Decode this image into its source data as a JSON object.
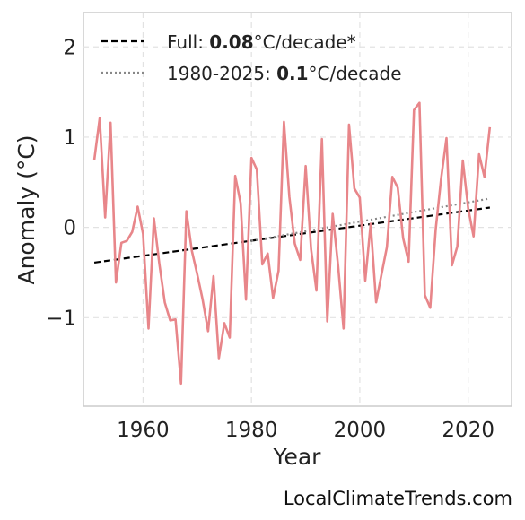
{
  "chart_data": {
    "type": "line",
    "xlabel": "Year",
    "ylabel": "Anomaly (°C)",
    "xlim": [
      1949,
      2028
    ],
    "ylim": [
      -1.98,
      2.38
    ],
    "grid": true,
    "legend_position": "top-left",
    "x_ticks": [
      1960,
      1980,
      2000,
      2020
    ],
    "x_tick_labels": [
      "1960",
      "1980",
      "2000",
      "2020"
    ],
    "y_ticks": [
      -1,
      0,
      1,
      2
    ],
    "y_tick_labels": [
      "−1",
      "0",
      "1",
      "2"
    ],
    "series": [
      {
        "color": "#e8868a",
        "x": [
          1951,
          1952,
          1953,
          1954,
          1955,
          1956,
          1957,
          1958,
          1959,
          1960,
          1961,
          1962,
          1963,
          1964,
          1965,
          1966,
          1967,
          1968,
          1969,
          1970,
          1971,
          1972,
          1973,
          1974,
          1975,
          1976,
          1977,
          1978,
          1979,
          1980,
          1981,
          1982,
          1983,
          1984,
          1985,
          1986,
          1987,
          1988,
          1989,
          1990,
          1991,
          1992,
          1993,
          1994,
          1995,
          1996,
          1997,
          1998,
          1999,
          2000,
          2001,
          2002,
          2003,
          2004,
          2005,
          2006,
          2007,
          2008,
          2009,
          2010,
          2011,
          2012,
          2013,
          2014,
          2015,
          2016,
          2017,
          2018,
          2019,
          2020,
          2021,
          2022,
          2023,
          2024
        ],
        "y": [
          0.75,
          1.21,
          0.11,
          1.16,
          -0.61,
          -0.17,
          -0.15,
          -0.05,
          0.23,
          -0.07,
          -1.12,
          0.1,
          -0.4,
          -0.83,
          -1.03,
          -1.02,
          -1.73,
          0.18,
          -0.26,
          -0.52,
          -0.8,
          -1.15,
          -0.54,
          -1.45,
          -1.06,
          -1.22,
          0.57,
          0.27,
          -0.8,
          0.77,
          0.64,
          -0.41,
          -0.29,
          -0.78,
          -0.48,
          1.17,
          0.34,
          -0.18,
          -0.36,
          0.68,
          -0.24,
          -0.7,
          0.98,
          -1.04,
          0.15,
          -0.43,
          -1.12,
          1.14,
          0.43,
          0.33,
          -0.59,
          0.04,
          -0.83,
          -0.52,
          -0.22,
          0.56,
          0.44,
          -0.12,
          -0.38,
          1.3,
          1.38,
          -0.75,
          -0.89,
          -0.02,
          0.54,
          0.99,
          -0.42,
          -0.21,
          0.74,
          0.21,
          -0.1,
          0.81,
          0.56,
          1.11
        ]
      }
    ],
    "trends": [
      {
        "label_prefix": "Full: ",
        "label_value": "0.08",
        "label_suffix": "°C/decade*",
        "style": "dashed",
        "color": "#000000",
        "x": [
          1951,
          2024
        ],
        "y": [
          -0.39,
          0.22
        ]
      },
      {
        "label_prefix": "1980-2025: ",
        "label_value": "0.1",
        "label_suffix": "°C/decade",
        "style": "dotted",
        "color": "#888888",
        "x": [
          1980,
          2024
        ],
        "y": [
          -0.15,
          0.32
        ]
      }
    ]
  },
  "watermark": "LocalClimateTrends.com"
}
